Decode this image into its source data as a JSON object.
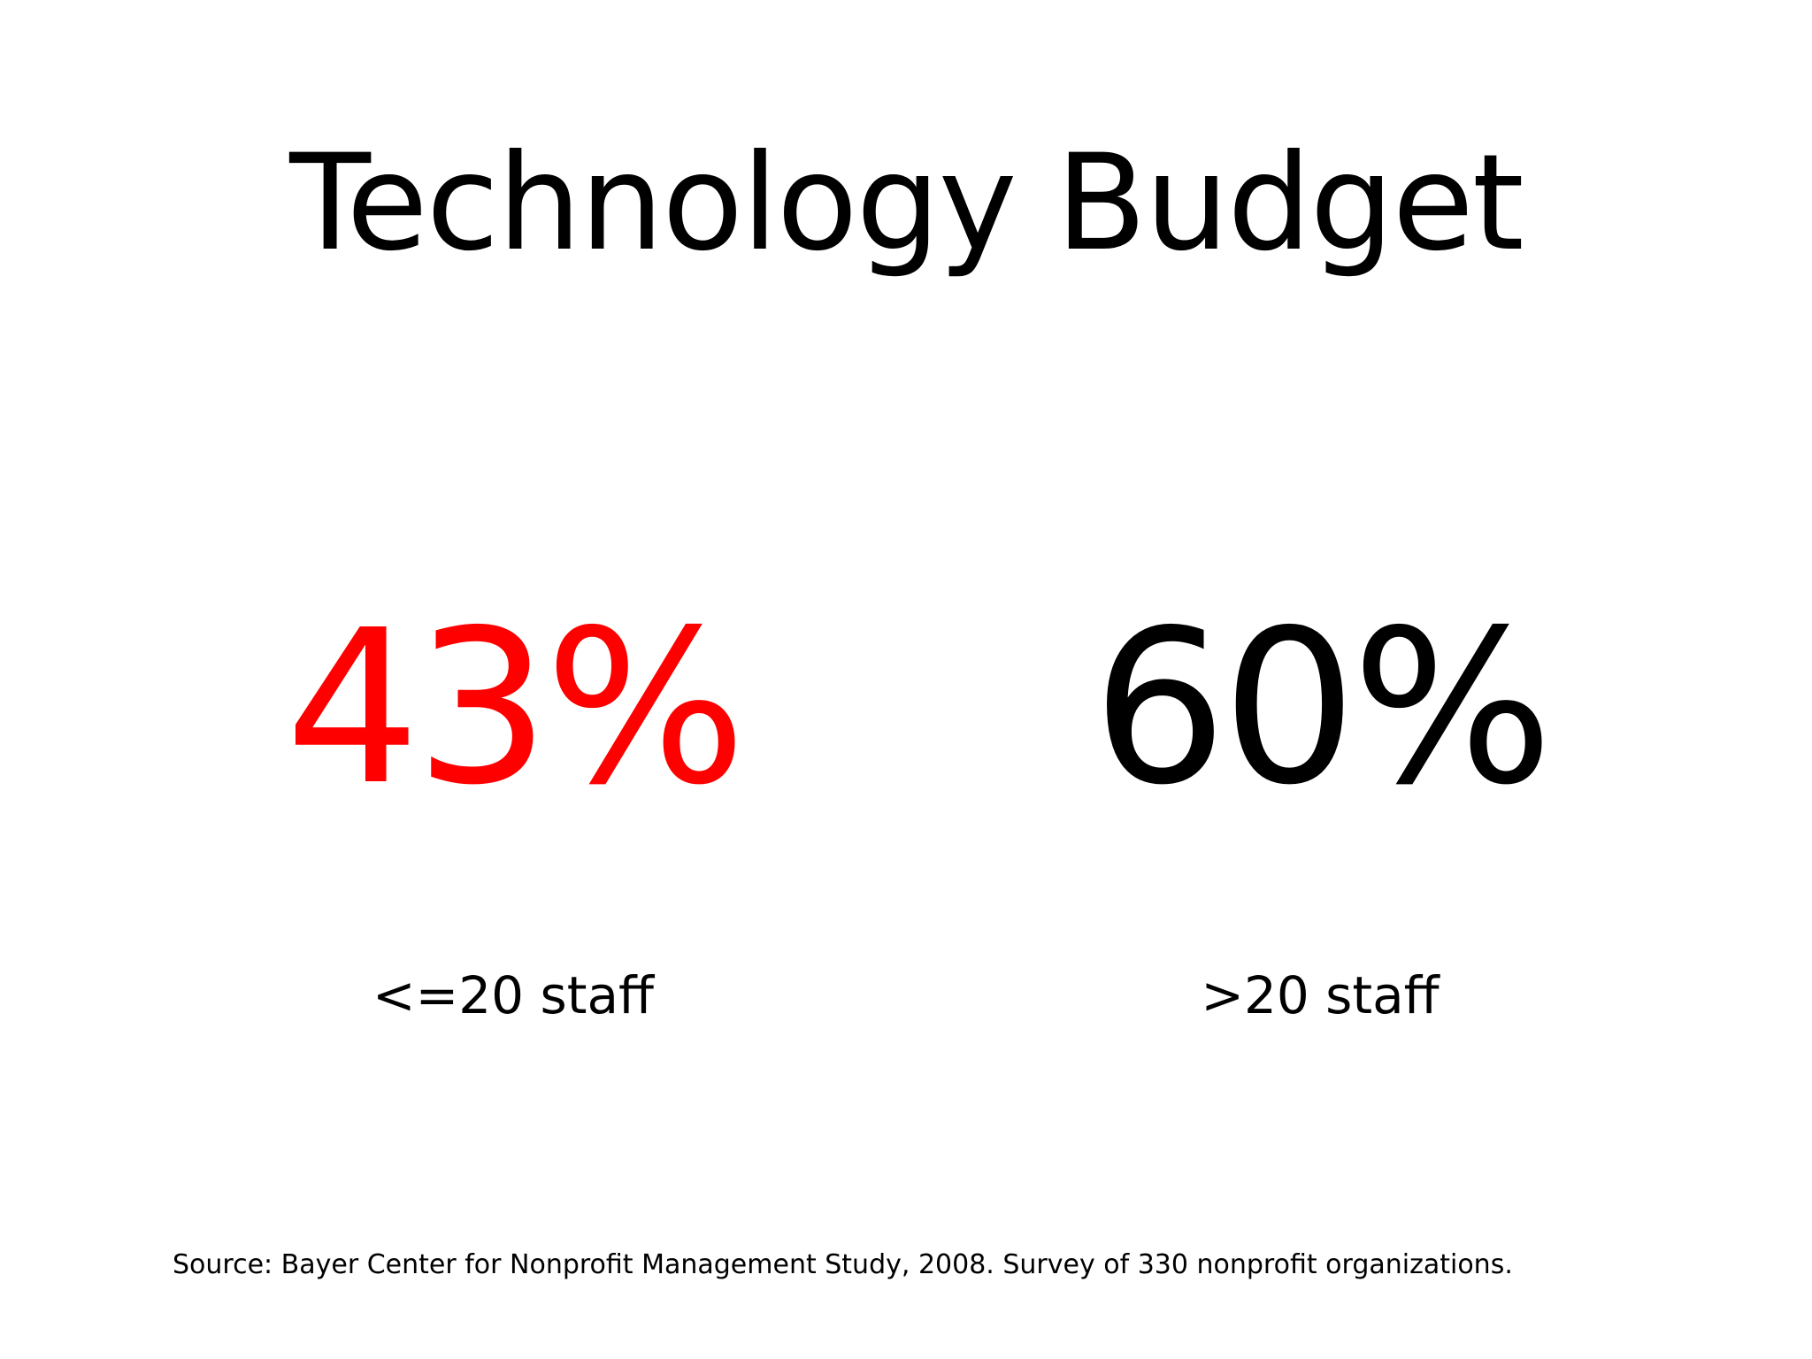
{
  "title": "Technology Budget",
  "stats": [
    {
      "value": "43%",
      "label": "<=20 staff",
      "color": "#ff0000"
    },
    {
      "value": "60%",
      "label": ">20 staff",
      "color": "#000000"
    }
  ],
  "source": "Source: Bayer Center for Nonprofit Management Study, 2008. Survey of 330 nonprofit organizations."
}
